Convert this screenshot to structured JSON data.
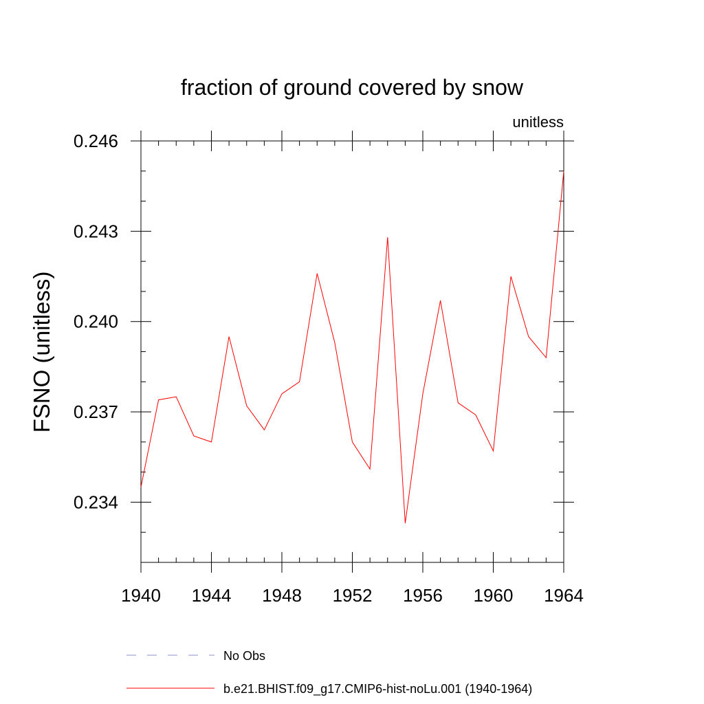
{
  "chart_data": {
    "type": "line",
    "title": "fraction of ground covered by snow",
    "units_label": "unitless",
    "ylabel": "FSNO  (unitless)",
    "xlabel": "",
    "xlim": [
      1940,
      1964
    ],
    "ylim": [
      0.232,
      0.246
    ],
    "x_ticks": [
      1940,
      1944,
      1948,
      1952,
      1956,
      1960,
      1964
    ],
    "x_minor_step": 1,
    "y_ticks": [
      0.234,
      0.237,
      0.24,
      0.243,
      0.246
    ],
    "y_tick_labels": [
      "0.234",
      "0.237",
      "0.240",
      "0.243",
      "0.246"
    ],
    "y_minor_step": 0.001,
    "grid": false,
    "legend_position": "bottom",
    "x": [
      1940,
      1941,
      1942,
      1943,
      1944,
      1945,
      1946,
      1947,
      1948,
      1949,
      1950,
      1951,
      1952,
      1953,
      1954,
      1955,
      1956,
      1957,
      1958,
      1959,
      1960,
      1961,
      1962,
      1963,
      1964
    ],
    "series": [
      {
        "name": "b.e21.BHIST.f09_g17.CMIP6-hist-noLu.001 (1940-1964)",
        "color": "#ff0000",
        "style": "solid",
        "values": [
          0.2345,
          0.2374,
          0.2375,
          0.2362,
          0.236,
          0.2395,
          0.2372,
          0.2364,
          0.2376,
          0.238,
          0.2416,
          0.2393,
          0.236,
          0.2351,
          0.2428,
          0.2333,
          0.2376,
          0.2407,
          0.2373,
          0.2369,
          0.2357,
          0.2415,
          0.2395,
          0.2388,
          0.245
        ]
      }
    ],
    "legend": [
      {
        "label": "No Obs",
        "color": "#8c8ccc",
        "style": "dashed"
      },
      {
        "label": "b.e21.BHIST.f09_g17.CMIP6-hist-noLu.001 (1940-1964)",
        "color": "#ff0000",
        "style": "solid"
      }
    ]
  }
}
